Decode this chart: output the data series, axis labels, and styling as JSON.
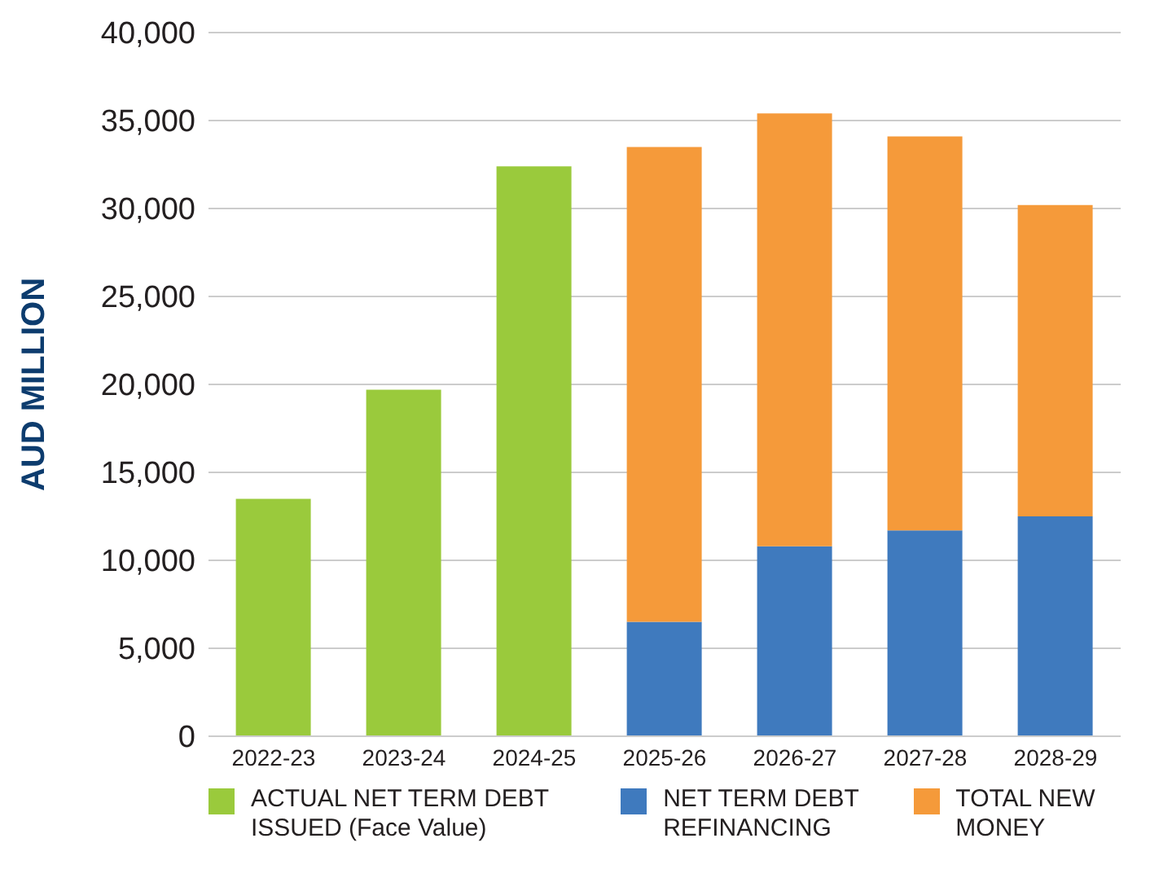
{
  "chart_data": {
    "type": "bar",
    "ylabel": "AUD MILLION",
    "stacked": true,
    "categories": [
      "2022-23",
      "2023-24",
      "2024-25",
      "2025-26",
      "2026-27",
      "2027-28",
      "2028-29"
    ],
    "series": [
      {
        "name": "ACTUAL NET TERM DEBT ISSUED (Face Value)",
        "color": "#9aca3c",
        "values": [
          13500,
          19700,
          32400,
          null,
          null,
          null,
          null
        ]
      },
      {
        "name": "NET TERM DEBT REFINANCING",
        "color": "#3f7abe",
        "values": [
          null,
          null,
          null,
          6500,
          10800,
          11700,
          12500
        ]
      },
      {
        "name": "TOTAL NEW MONEY",
        "color": "#f59a3a",
        "values": [
          null,
          null,
          null,
          27000,
          24600,
          22400,
          17700
        ]
      }
    ],
    "ylim": [
      0,
      40000
    ],
    "yticks": [
      0,
      {
        "value": 5000,
        "label": "5,000"
      },
      {
        "value": 10000,
        "label": "10,000"
      },
      {
        "value": 15000,
        "label": "15,000"
      },
      {
        "value": 20000,
        "label": "20,000"
      },
      {
        "value": 25000,
        "label": "25,000"
      },
      {
        "value": 30000,
        "label": "30,000"
      },
      {
        "value": 35000,
        "label": "35,000"
      },
      {
        "value": 40000,
        "label": "40,000"
      }
    ],
    "grid": "y",
    "legend": "bottom"
  }
}
